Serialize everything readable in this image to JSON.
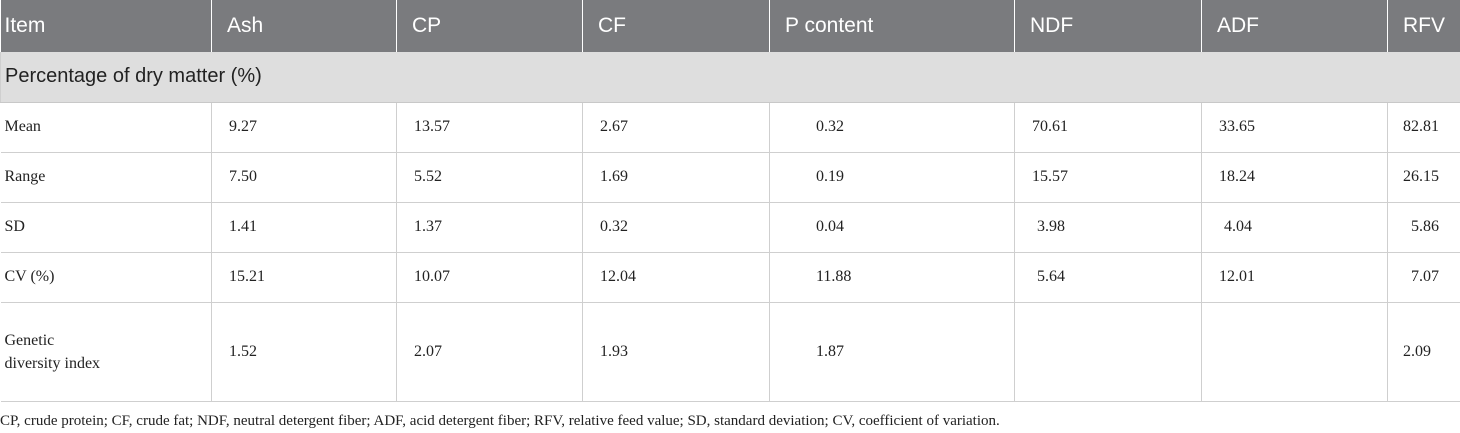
{
  "header": [
    "Item",
    "Ash",
    "CP",
    "CF",
    "P content",
    "NDF",
    "ADF",
    "RFV"
  ],
  "section_label": "Percentage of dry matter (%)",
  "rows": [
    {
      "label": "Mean",
      "values": [
        "9.27",
        "13.57",
        "2.67",
        "0.32",
        "70.61",
        "33.65",
        "82.81"
      ]
    },
    {
      "label": "Range",
      "values": [
        "7.50",
        "5.52",
        "1.69",
        "0.19",
        "15.57",
        "18.24",
        "26.15"
      ]
    },
    {
      "label": "SD",
      "values": [
        "1.41",
        "1.37",
        "0.32",
        "0.04",
        "3.98",
        "4.04",
        "5.86"
      ]
    },
    {
      "label": "CV (%)",
      "values": [
        "15.21",
        "10.07",
        "12.04",
        "11.88",
        "5.64",
        "12.01",
        "7.07"
      ]
    },
    {
      "label": "Genetic diversity index",
      "values": [
        "1.52",
        "2.07",
        "1.93",
        "1.87",
        "",
        "",
        "2.09"
      ]
    }
  ],
  "footnote": "CP, crude protein; CF, crude fat; NDF, neutral detergent fiber; ADF, acid detergent fiber; RFV, relative feed value; SD, standard deviation; CV, coefficient of variation."
}
